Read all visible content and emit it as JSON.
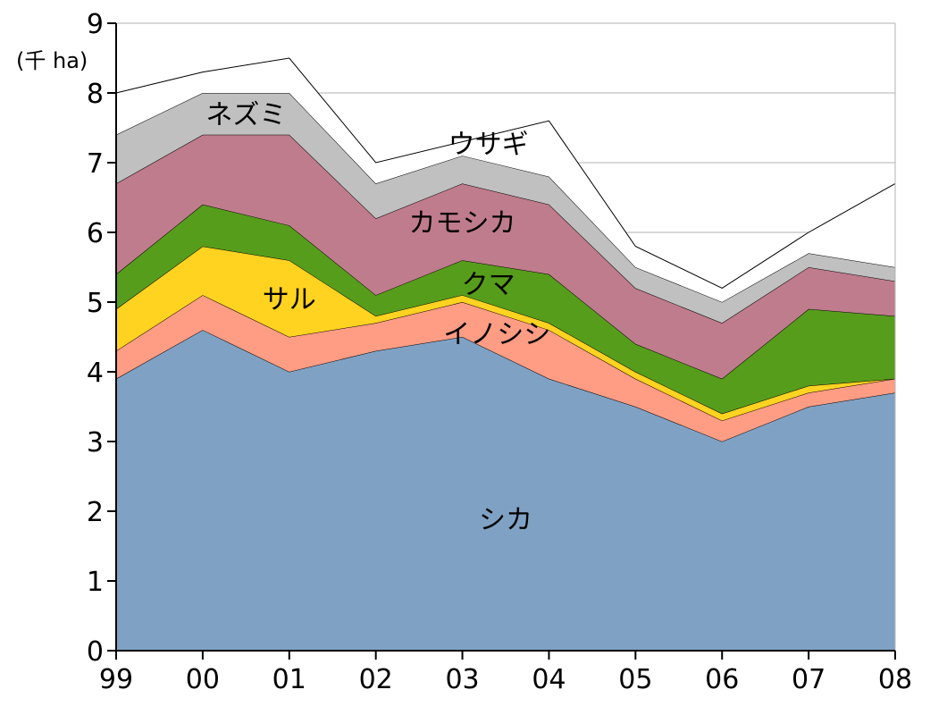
{
  "chart_data": {
    "type": "area",
    "stacked": true,
    "unit_label": "(千 ha)",
    "title": "",
    "xlabel": "",
    "ylabel": "",
    "categories": [
      "99",
      "00",
      "01",
      "02",
      "03",
      "04",
      "05",
      "06",
      "07",
      "08"
    ],
    "ylim": [
      0,
      9
    ],
    "yticks": [
      0,
      1,
      2,
      3,
      4,
      5,
      6,
      7,
      8,
      9
    ],
    "grid": {
      "horizontal": true,
      "vertical": false
    },
    "legend": "labels placed inside areas",
    "series": [
      {
        "name": "シカ",
        "color": "#7FA2C4",
        "values": [
          3.9,
          4.6,
          4.0,
          4.3,
          4.5,
          3.9,
          3.5,
          3.0,
          3.5,
          3.7
        ]
      },
      {
        "name": "イノシシ",
        "color": "#FF9C84",
        "values": [
          0.4,
          0.5,
          0.5,
          0.4,
          0.5,
          0.7,
          0.4,
          0.3,
          0.2,
          0.2
        ]
      },
      {
        "name": "サル",
        "color": "#FFD320",
        "values": [
          0.6,
          0.7,
          1.1,
          0.1,
          0.1,
          0.1,
          0.1,
          0.1,
          0.1,
          0.0
        ]
      },
      {
        "name": "クマ",
        "color": "#579D1C",
        "values": [
          0.5,
          0.6,
          0.5,
          0.3,
          0.5,
          0.7,
          0.4,
          0.5,
          1.1,
          0.9
        ]
      },
      {
        "name": "カモシカ",
        "color": "#BF7C8C",
        "values": [
          1.3,
          1.0,
          1.3,
          1.1,
          1.1,
          1.0,
          0.8,
          0.8,
          0.6,
          0.5
        ]
      },
      {
        "name": "ネズミ",
        "color": "#C0C0C0",
        "values": [
          0.7,
          0.6,
          0.6,
          0.5,
          0.4,
          0.4,
          0.3,
          0.3,
          0.2,
          0.2
        ]
      },
      {
        "name": "ウサギ",
        "color": "#FFFFFF",
        "values": [
          0.6,
          0.3,
          0.5,
          0.3,
          0.2,
          0.8,
          0.3,
          0.2,
          0.3,
          1.2
        ]
      }
    ]
  }
}
